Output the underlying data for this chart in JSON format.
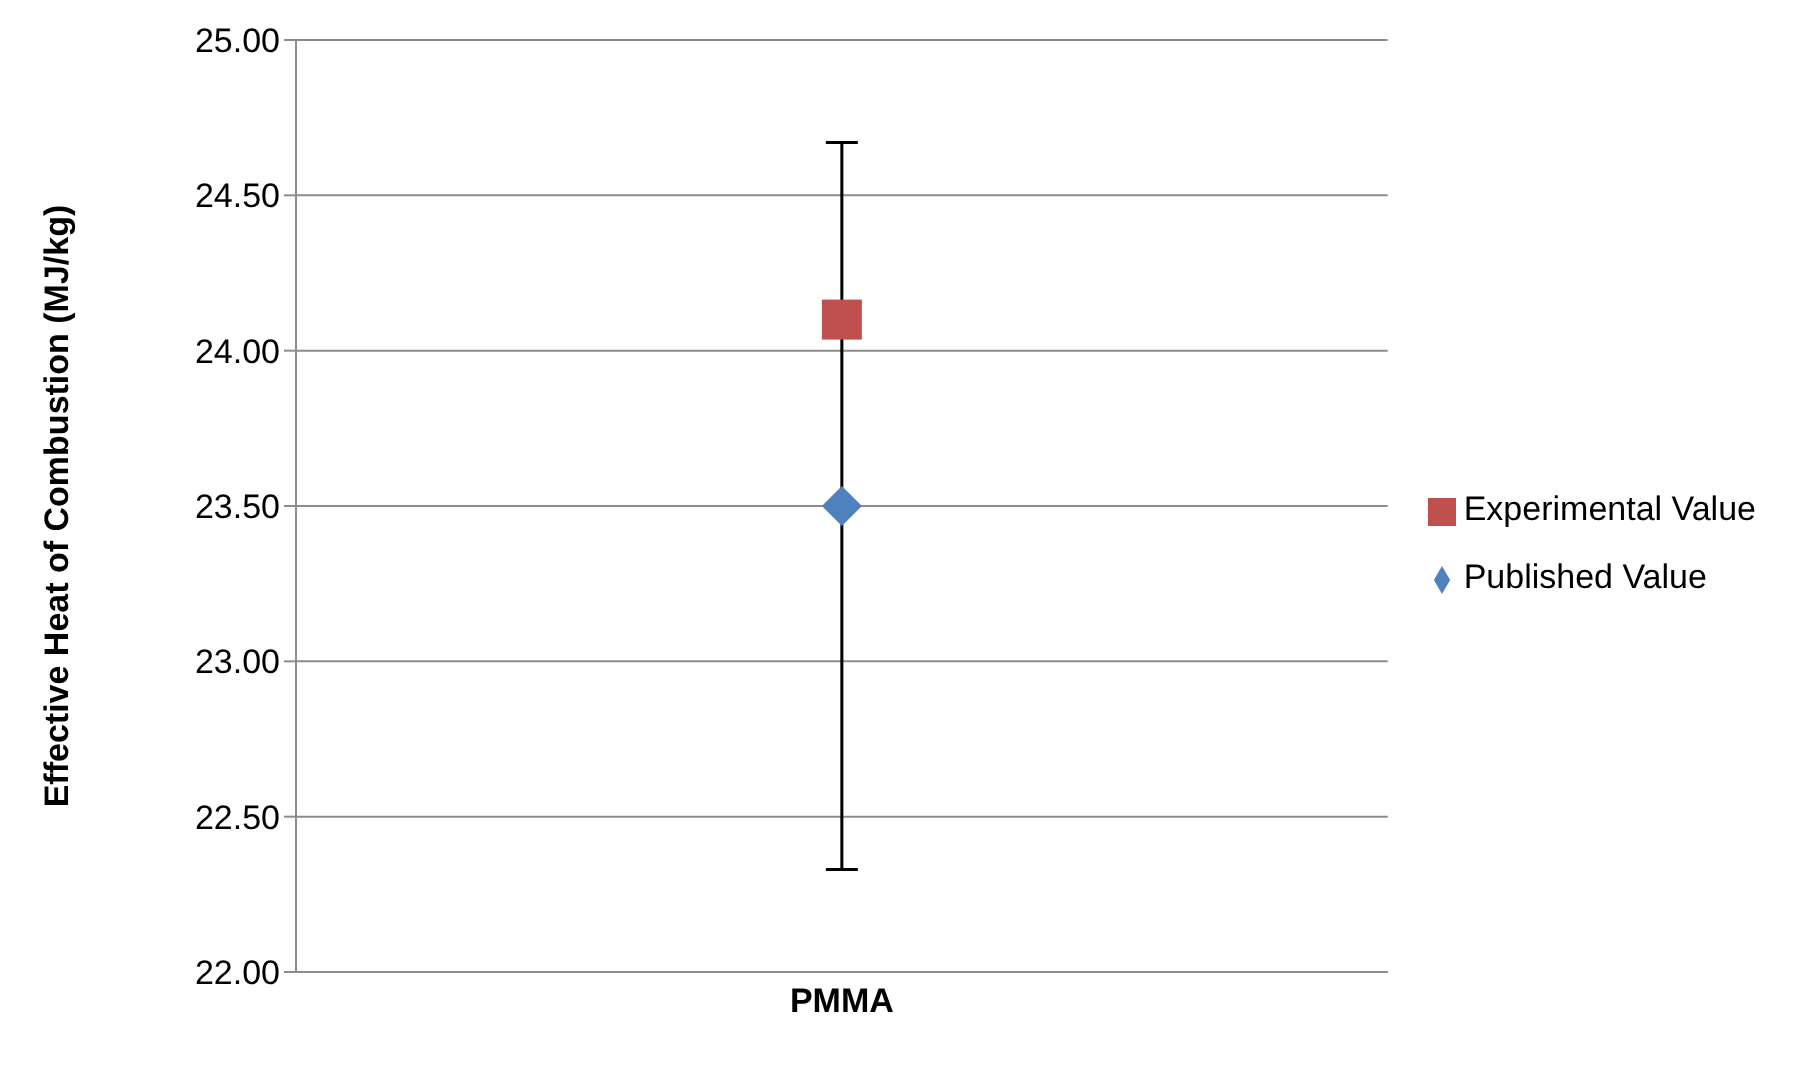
{
  "chart_data": {
    "type": "scatter",
    "ylabel": "Effective Heat of Combustion (MJ/kg)",
    "categories": [
      "PMMA"
    ],
    "ylim": [
      22,
      25
    ],
    "yticks": [
      {
        "value": 22,
        "label": "22.00"
      },
      {
        "value": 22.5,
        "label": "22.50"
      },
      {
        "value": 23,
        "label": "23.00"
      },
      {
        "value": 23.5,
        "label": "23.50"
      },
      {
        "value": 24,
        "label": "24.00"
      },
      {
        "value": 24.5,
        "label": "24.50"
      },
      {
        "value": 25,
        "label": "25.00"
      }
    ],
    "grid": "y",
    "legend": "right",
    "series": [
      {
        "name": "Published Value",
        "color": "#4f81bd",
        "marker": "diamond",
        "values": [
          23.5
        ],
        "errors": [
          1.17
        ]
      },
      {
        "name": "Experimental Value",
        "color": "#c0504d",
        "marker": "square",
        "values": [
          24.1
        ]
      }
    ]
  }
}
